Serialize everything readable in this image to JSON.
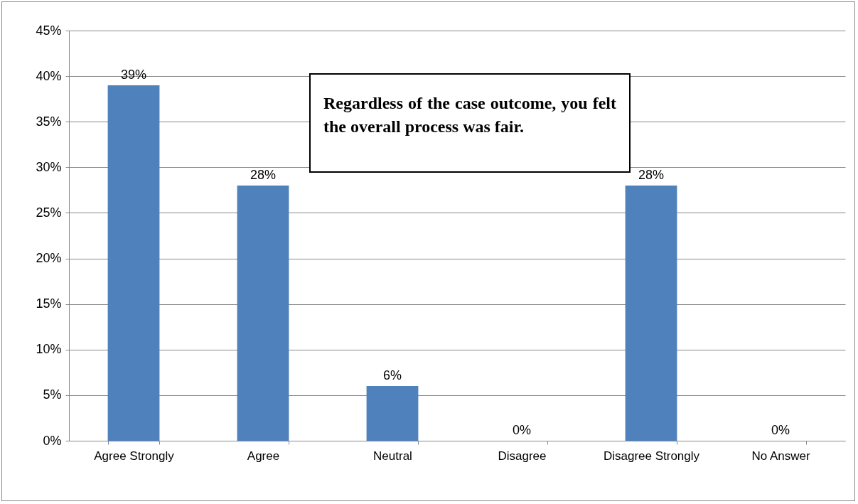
{
  "chart_data": {
    "type": "bar",
    "annotations": [
      "Regardless of the case outcome, you felt the overall process was fair."
    ],
    "categories": [
      "Agree Strongly",
      "Agree",
      "Neutral",
      "Disagree",
      "Disagree Strongly",
      "No Answer"
    ],
    "values": [
      39,
      28,
      6,
      0,
      28,
      0
    ],
    "color": "#4f81bd",
    "ylim": [
      0,
      45
    ],
    "yticks": [
      {
        "value": 0,
        "label": "0%"
      },
      {
        "value": 5,
        "label": "5%"
      },
      {
        "value": 10,
        "label": "10%"
      },
      {
        "value": 15,
        "label": "15%"
      },
      {
        "value": 20,
        "label": "20%"
      },
      {
        "value": 25,
        "label": "25%"
      },
      {
        "value": 30,
        "label": "30%"
      },
      {
        "value": 35,
        "label": "35%"
      },
      {
        "value": 40,
        "label": "40%"
      },
      {
        "value": 45,
        "label": "45%"
      }
    ],
    "grid": "y",
    "value_labels": [
      "39%",
      "28%",
      "6%",
      "0%",
      "28%",
      "0%"
    ]
  }
}
